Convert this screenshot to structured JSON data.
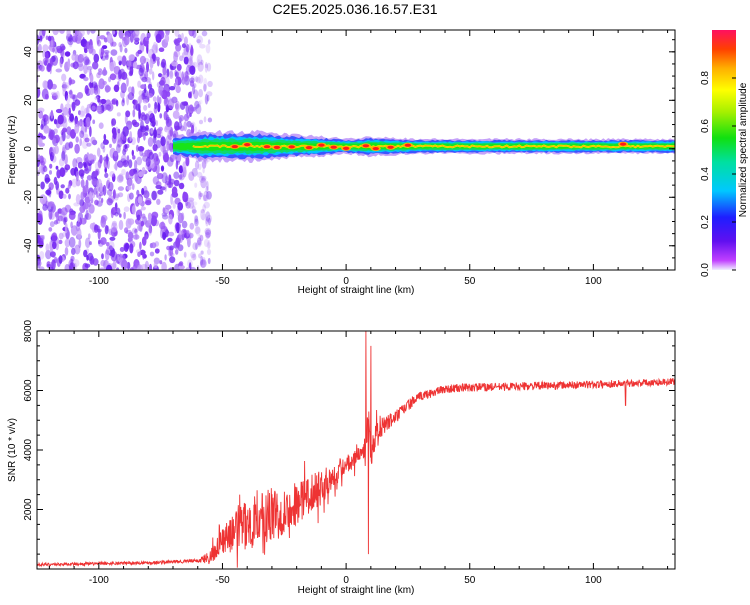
{
  "title": "C2E5.2025.036.16.57.E31",
  "colors": {
    "snr_line": "#ee3333",
    "noise_dot": "#6a1ff0",
    "axis": "#000000"
  },
  "chart_data": [
    {
      "type": "heatmap",
      "name": "spectrogram",
      "xlabel": "Height of straight line (km)",
      "ylabel": "Frequency (Hz)",
      "xlim": [
        -125,
        133
      ],
      "ylim": [
        -50,
        49
      ],
      "xticks": [
        -100,
        -50,
        0,
        50,
        100
      ],
      "yticks": [
        -40,
        -20,
        0,
        20,
        40
      ],
      "colorbar": {
        "label": "Normalized spectral amplitude",
        "range": [
          0,
          1
        ],
        "ticks": [
          0.0,
          0.2,
          0.4,
          0.6,
          0.8
        ],
        "colormap": "rainbow (magenta-purple-blue-cyan-green-yellow-orange-red)"
      },
      "noise_region": {
        "x_from": -125,
        "x_to": -55,
        "frequency_range": [
          -50,
          49
        ],
        "amplitude": 0.05
      },
      "signal_band": {
        "x_from": -70,
        "x_to": 133,
        "center_frequency": 1,
        "half_width": [
          [
            -70,
            4
          ],
          [
            -55,
            6
          ],
          [
            -35,
            6
          ],
          [
            -25,
            5
          ],
          [
            -10,
            4
          ],
          [
            0,
            3
          ],
          [
            10,
            4
          ],
          [
            30,
            3
          ],
          [
            60,
            3
          ],
          [
            100,
            3
          ],
          [
            133,
            3
          ]
        ],
        "hot_spots_x": [
          -45,
          -40,
          -32,
          -28,
          -22,
          -15,
          -10,
          -5,
          0,
          8,
          12,
          18,
          25,
          112
        ]
      }
    },
    {
      "type": "line",
      "name": "snr",
      "xlabel": "Height of straight line (km)",
      "ylabel": "SNR (10 * v/v)",
      "xlim": [
        -125,
        133
      ],
      "ylim": [
        0,
        8000
      ],
      "xticks": [
        -100,
        -50,
        0,
        50,
        100
      ],
      "yticks": [
        2000,
        4000,
        6000,
        8000
      ],
      "series": [
        {
          "name": "SNR",
          "envelope_x": [
            -125,
            -100,
            -75,
            -60,
            -55,
            -50,
            -40,
            -30,
            -20,
            -10,
            0,
            5,
            8,
            9,
            10,
            12,
            15,
            20,
            25,
            30,
            40,
            50,
            75,
            100,
            125,
            133
          ],
          "envelope_y": [
            150,
            180,
            220,
            280,
            400,
            1000,
            1500,
            1800,
            2200,
            2800,
            3500,
            3900,
            4200,
            5200,
            3800,
            4500,
            4800,
            5100,
            5500,
            5800,
            6050,
            6100,
            6150,
            6200,
            6280,
            6300
          ],
          "noise_amplitude": [
            [
              -125,
              80
            ],
            [
              -60,
              100
            ],
            [
              -55,
              400
            ],
            [
              -40,
              1400
            ],
            [
              -30,
              1600
            ],
            [
              -20,
              1200
            ],
            [
              -10,
              900
            ],
            [
              0,
              500
            ],
            [
              10,
              700
            ],
            [
              20,
              400
            ],
            [
              30,
              250
            ],
            [
              133,
              200
            ]
          ],
          "spikes": [
            {
              "x": 8,
              "y": 8000
            },
            {
              "x": 9,
              "y": 500
            },
            {
              "x": 10,
              "y": 7500
            },
            {
              "x": 113,
              "y": 5500
            }
          ]
        }
      ]
    }
  ]
}
